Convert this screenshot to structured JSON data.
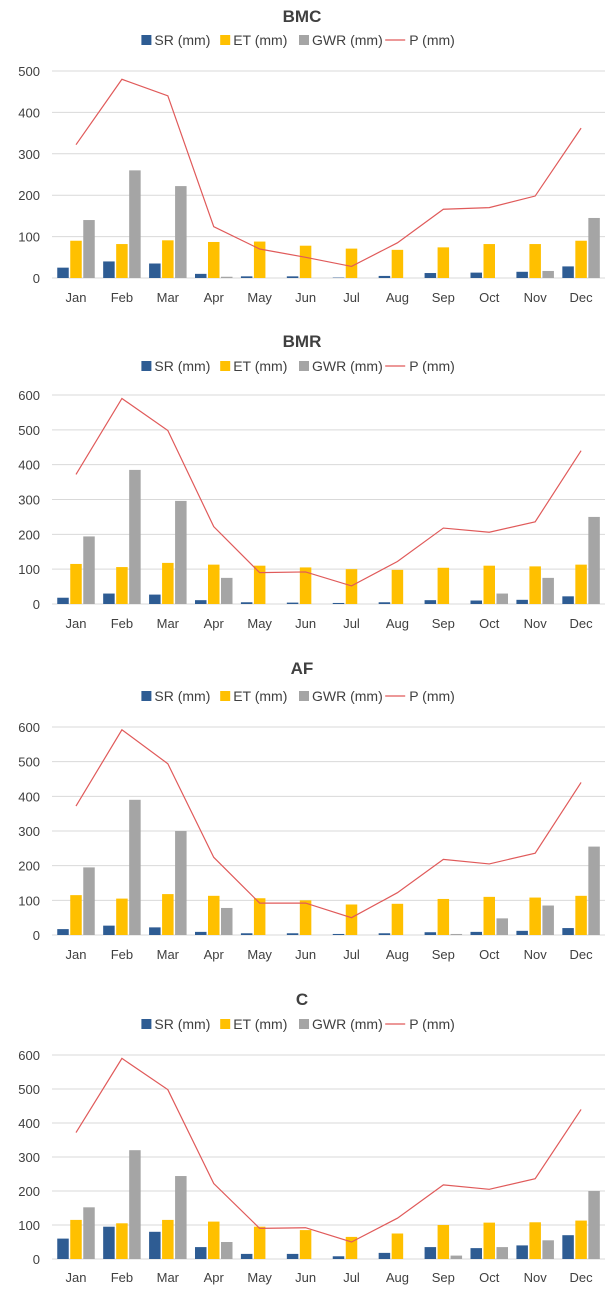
{
  "colors": {
    "SR": "#2e5c93",
    "ET": "#ffc000",
    "GWR": "#a5a5a5",
    "P": "#e05a5a",
    "grid": "#d9d9d9",
    "text": "#404040"
  },
  "chart_data": [
    {
      "type": "bar",
      "title": "BMC",
      "categories": [
        "Jan",
        "Feb",
        "Mar",
        "Apr",
        "May",
        "Jun",
        "Jul",
        "Aug",
        "Sep",
        "Oct",
        "Nov",
        "Dec"
      ],
      "ylim": [
        0,
        500
      ],
      "yticks": [
        "0",
        "100",
        "200",
        "300",
        "400",
        "500"
      ],
      "legend_position": "top",
      "grid": true,
      "series": [
        {
          "name": "SR (mm)",
          "type": "bar",
          "color_key": "SR",
          "values": [
            25,
            40,
            35,
            10,
            4,
            4,
            1,
            5,
            12,
            13,
            15,
            28
          ]
        },
        {
          "name": "ET (mm)",
          "type": "bar",
          "color_key": "ET",
          "values": [
            90,
            82,
            91,
            87,
            88,
            78,
            71,
            68,
            74,
            82,
            82,
            90
          ]
        },
        {
          "name": "GWR (mm)",
          "type": "bar",
          "color_key": "GWR",
          "values": [
            140,
            260,
            222,
            3,
            0,
            0,
            0,
            0,
            0,
            0,
            17,
            145
          ]
        },
        {
          "name": "P (mm)",
          "type": "line",
          "color_key": "P",
          "values": [
            322,
            480,
            440,
            124,
            70,
            50,
            28,
            85,
            166,
            170,
            198,
            362
          ]
        }
      ]
    },
    {
      "type": "bar",
      "title": "BMR",
      "categories": [
        "Jan",
        "Feb",
        "Mar",
        "Apr",
        "May",
        "Jun",
        "Jul",
        "Aug",
        "Sep",
        "Oct",
        "Nov",
        "Dec"
      ],
      "ylim": [
        0,
        600
      ],
      "yticks": [
        "0",
        "100",
        "200",
        "300",
        "400",
        "500",
        "600"
      ],
      "legend_position": "top",
      "grid": true,
      "series": [
        {
          "name": "SR (mm)",
          "type": "bar",
          "color_key": "SR",
          "values": [
            18,
            30,
            27,
            11,
            5,
            4,
            3,
            5,
            11,
            10,
            12,
            22
          ]
        },
        {
          "name": "ET (mm)",
          "type": "bar",
          "color_key": "ET",
          "values": [
            115,
            106,
            118,
            113,
            110,
            105,
            100,
            98,
            104,
            110,
            108,
            113
          ]
        },
        {
          "name": "GWR (mm)",
          "type": "bar",
          "color_key": "GWR",
          "values": [
            194,
            385,
            296,
            75,
            0,
            0,
            0,
            0,
            0,
            30,
            75,
            250
          ]
        },
        {
          "name": "P (mm)",
          "type": "line",
          "color_key": "P",
          "values": [
            372,
            590,
            498,
            222,
            90,
            92,
            52,
            122,
            218,
            206,
            236,
            440
          ]
        }
      ]
    },
    {
      "type": "bar",
      "title": "AF",
      "categories": [
        "Jan",
        "Feb",
        "Mar",
        "Apr",
        "May",
        "Jun",
        "Jul",
        "Aug",
        "Sep",
        "Oct",
        "Nov",
        "Dec"
      ],
      "ylim": [
        0,
        600
      ],
      "yticks": [
        "0",
        "100",
        "200",
        "300",
        "400",
        "500",
        "600"
      ],
      "legend_position": "top",
      "grid": true,
      "series": [
        {
          "name": "SR (mm)",
          "type": "bar",
          "color_key": "SR",
          "values": [
            17,
            27,
            22,
            9,
            5,
            5,
            3,
            5,
            8,
            9,
            12,
            20
          ]
        },
        {
          "name": "ET (mm)",
          "type": "bar",
          "color_key": "ET",
          "values": [
            115,
            105,
            118,
            113,
            106,
            100,
            88,
            90,
            104,
            110,
            108,
            113
          ]
        },
        {
          "name": "GWR (mm)",
          "type": "bar",
          "color_key": "GWR",
          "values": [
            195,
            390,
            300,
            78,
            0,
            0,
            0,
            0,
            3,
            48,
            85,
            255
          ]
        },
        {
          "name": "P (mm)",
          "type": "line",
          "color_key": "P",
          "values": [
            372,
            592,
            494,
            224,
            92,
            92,
            50,
            122,
            218,
            205,
            236,
            440
          ]
        }
      ]
    },
    {
      "type": "bar",
      "title": "C",
      "categories": [
        "Jan",
        "Feb",
        "Mar",
        "Apr",
        "May",
        "Jun",
        "Jul",
        "Aug",
        "Sep",
        "Oct",
        "Nov",
        "Dec"
      ],
      "ylim": [
        0,
        600
      ],
      "yticks": [
        "0",
        "100",
        "200",
        "300",
        "400",
        "500",
        "600"
      ],
      "legend_position": "top",
      "grid": true,
      "series": [
        {
          "name": "SR (mm)",
          "type": "bar",
          "color_key": "SR",
          "values": [
            60,
            95,
            80,
            35,
            15,
            15,
            8,
            18,
            35,
            32,
            40,
            70
          ]
        },
        {
          "name": "ET (mm)",
          "type": "bar",
          "color_key": "ET",
          "values": [
            115,
            105,
            115,
            110,
            95,
            85,
            65,
            75,
            100,
            107,
            108,
            113
          ]
        },
        {
          "name": "GWR (mm)",
          "type": "bar",
          "color_key": "GWR",
          "values": [
            152,
            320,
            244,
            50,
            0,
            0,
            0,
            0,
            10,
            35,
            55,
            200
          ]
        },
        {
          "name": "P (mm)",
          "type": "line",
          "color_key": "P",
          "values": [
            372,
            590,
            498,
            222,
            90,
            92,
            50,
            120,
            218,
            205,
            236,
            440
          ]
        }
      ]
    }
  ]
}
